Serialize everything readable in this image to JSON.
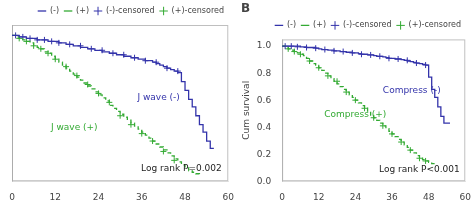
{
  "chart_data": [
    {
      "type": "line",
      "xlim": [
        0,
        60
      ],
      "ylim": [
        0,
        1.05
      ],
      "xticks": [
        0,
        12,
        24,
        36,
        48,
        60
      ],
      "tick_labels": "x",
      "grid": false,
      "legend": "upper right",
      "annotations": [
        {
          "text": "Log rank P=0.002"
        },
        {
          "text": "J wave (-)",
          "color": "#3333aa"
        },
        {
          "text": "J wave (+)",
          "color": "#33aa33"
        }
      ],
      "series": [
        {
          "name": "(-)",
          "type": "step",
          "line_style": "solid",
          "color": "#3333aa",
          "x": [
            0,
            1,
            2,
            3,
            4,
            5,
            6,
            7,
            8,
            9,
            10,
            11,
            12,
            13,
            14,
            15,
            16,
            17,
            18,
            19,
            20,
            21,
            22,
            23,
            24,
            25,
            26,
            27,
            28,
            29,
            30,
            31,
            32,
            33,
            34,
            35,
            36,
            37,
            38,
            39,
            40,
            41,
            42,
            43,
            44,
            45,
            46,
            47,
            48,
            49,
            50,
            51,
            52,
            53,
            54,
            55,
            56
          ],
          "values": [
            0.98,
            0.98,
            0.97,
            0.97,
            0.96,
            0.96,
            0.96,
            0.95,
            0.95,
            0.95,
            0.94,
            0.94,
            0.94,
            0.93,
            0.93,
            0.92,
            0.92,
            0.91,
            0.91,
            0.9,
            0.9,
            0.89,
            0.89,
            0.88,
            0.88,
            0.87,
            0.87,
            0.86,
            0.86,
            0.85,
            0.85,
            0.84,
            0.84,
            0.83,
            0.83,
            0.82,
            0.82,
            0.81,
            0.81,
            0.8,
            0.79,
            0.78,
            0.77,
            0.76,
            0.75,
            0.74,
            0.73,
            0.67,
            0.61,
            0.55,
            0.5,
            0.44,
            0.38,
            0.33,
            0.27,
            0.22,
            0.22
          ]
        },
        {
          "name": "(+)",
          "type": "step",
          "line_style": "dashed",
          "color": "#33aa33",
          "x": [
            0,
            1,
            2,
            3,
            4,
            5,
            6,
            7,
            8,
            9,
            10,
            11,
            12,
            13,
            14,
            15,
            16,
            17,
            18,
            19,
            20,
            21,
            22,
            23,
            24,
            25,
            26,
            27,
            28,
            29,
            30,
            31,
            32,
            33,
            34,
            35,
            36,
            37,
            38,
            39,
            40,
            41,
            42,
            43,
            44,
            45,
            46,
            47,
            48,
            49,
            50,
            51,
            52
          ],
          "values": [
            0.98,
            0.97,
            0.96,
            0.95,
            0.94,
            0.93,
            0.91,
            0.9,
            0.89,
            0.87,
            0.86,
            0.84,
            0.82,
            0.8,
            0.78,
            0.76,
            0.74,
            0.72,
            0.7,
            0.68,
            0.66,
            0.64,
            0.62,
            0.6,
            0.58,
            0.56,
            0.54,
            0.51,
            0.49,
            0.47,
            0.45,
            0.43,
            0.41,
            0.39,
            0.37,
            0.35,
            0.33,
            0.31,
            0.29,
            0.27,
            0.25,
            0.23,
            0.21,
            0.19,
            0.17,
            0.15,
            0.13,
            0.11,
            0.09,
            0.07,
            0.06,
            0.05,
            0.04
          ]
        },
        {
          "name": "(-)-censored",
          "type": "scatter",
          "marker": "+",
          "color": "#3333aa",
          "x": [
            1,
            3,
            5,
            7,
            9,
            11,
            13,
            16,
            19,
            22,
            25,
            28,
            31,
            34,
            37,
            40,
            43,
            46
          ],
          "values": [
            0.98,
            0.97,
            0.96,
            0.95,
            0.95,
            0.94,
            0.93,
            0.92,
            0.91,
            0.89,
            0.88,
            0.86,
            0.85,
            0.83,
            0.81,
            0.8,
            0.76,
            0.74
          ]
        },
        {
          "name": "(+)-censored",
          "type": "scatter",
          "marker": "+",
          "color": "#33aa33",
          "x": [
            2,
            4,
            6,
            8,
            10,
            12,
            15,
            18,
            21,
            24,
            27,
            30,
            33,
            36,
            39,
            42,
            45
          ],
          "values": [
            0.96,
            0.94,
            0.91,
            0.89,
            0.86,
            0.82,
            0.77,
            0.71,
            0.65,
            0.59,
            0.53,
            0.44,
            0.38,
            0.32,
            0.27,
            0.2,
            0.14
          ]
        }
      ]
    },
    {
      "type": "line",
      "title": "B",
      "xlim": [
        0,
        60
      ],
      "ylim": [
        0.0,
        1.05
      ],
      "xticks": [
        0,
        12,
        24,
        36,
        48,
        60
      ],
      "yticks": [
        {
          "value": 0.0,
          "label": "0.0"
        },
        0.2,
        0.4,
        0.6,
        0.8,
        {
          "value": 1.0,
          "label": "1.0"
        }
      ],
      "ylabel": "Cum survival",
      "grid": false,
      "legend": "upper right",
      "annotations": [
        {
          "text": "Log rank P<0.001"
        },
        {
          "text": "Compress (-)",
          "color": "#3333aa"
        },
        {
          "text": "Compress (+)",
          "color": "#33aa33"
        }
      ],
      "series": [
        {
          "name": "(-)",
          "type": "step",
          "line_style": "solid",
          "color": "#3333aa",
          "x": [
            0,
            1,
            2,
            3,
            4,
            5,
            6,
            7,
            8,
            9,
            10,
            11,
            12,
            13,
            14,
            15,
            16,
            17,
            18,
            19,
            20,
            21,
            22,
            23,
            24,
            25,
            26,
            27,
            28,
            29,
            30,
            31,
            32,
            33,
            34,
            35,
            36,
            37,
            38,
            39,
            40,
            41,
            42,
            43,
            44,
            45,
            46,
            47,
            48,
            49,
            50,
            51,
            52,
            53,
            54,
            55
          ],
          "values": [
            1.0,
            1.0,
            1.0,
            1.0,
            1.0,
            1.0,
            0.995,
            0.995,
            0.99,
            0.99,
            0.99,
            0.985,
            0.98,
            0.975,
            0.975,
            0.97,
            0.97,
            0.965,
            0.965,
            0.96,
            0.96,
            0.955,
            0.955,
            0.95,
            0.95,
            0.945,
            0.94,
            0.94,
            0.935,
            0.935,
            0.93,
            0.925,
            0.925,
            0.92,
            0.915,
            0.91,
            0.91,
            0.905,
            0.905,
            0.9,
            0.895,
            0.89,
            0.885,
            0.88,
            0.875,
            0.87,
            0.865,
            0.86,
            0.77,
            0.68,
            0.62,
            0.55,
            0.48,
            0.43,
            0.43,
            0.43
          ]
        },
        {
          "name": "(+)",
          "type": "step",
          "line_style": "dashed",
          "color": "#33aa33",
          "x": [
            0,
            1,
            2,
            3,
            4,
            5,
            6,
            7,
            8,
            9,
            10,
            11,
            12,
            13,
            14,
            15,
            16,
            17,
            18,
            19,
            20,
            21,
            22,
            23,
            24,
            25,
            26,
            27,
            28,
            29,
            30,
            31,
            32,
            33,
            34,
            35,
            36,
            37,
            38,
            39,
            40,
            41,
            42,
            43,
            44,
            45,
            46,
            47,
            48,
            49,
            50
          ],
          "values": [
            1.0,
            1.0,
            0.98,
            0.97,
            0.96,
            0.95,
            0.94,
            0.93,
            0.91,
            0.89,
            0.87,
            0.86,
            0.84,
            0.82,
            0.8,
            0.78,
            0.76,
            0.74,
            0.72,
            0.7,
            0.68,
            0.66,
            0.64,
            0.62,
            0.6,
            0.58,
            0.56,
            0.54,
            0.51,
            0.49,
            0.47,
            0.45,
            0.43,
            0.41,
            0.39,
            0.37,
            0.35,
            0.33,
            0.31,
            0.29,
            0.27,
            0.25,
            0.23,
            0.21,
            0.19,
            0.17,
            0.16,
            0.15,
            0.14,
            0.13,
            0.12
          ]
        },
        {
          "name": "(-)-censored",
          "type": "scatter",
          "marker": "+",
          "color": "#3333aa",
          "x": [
            1,
            3,
            5,
            8,
            11,
            14,
            17,
            20,
            23,
            26,
            29,
            32,
            35,
            38,
            41,
            44,
            47
          ],
          "values": [
            1.0,
            1.0,
            0.995,
            0.99,
            0.985,
            0.975,
            0.965,
            0.96,
            0.95,
            0.94,
            0.935,
            0.925,
            0.91,
            0.905,
            0.895,
            0.875,
            0.86
          ]
        },
        {
          "name": "(+)-censored",
          "type": "scatter",
          "marker": "+",
          "color": "#33aa33",
          "x": [
            2,
            4,
            6,
            9,
            12,
            15,
            18,
            21,
            24,
            27,
            30,
            33,
            36,
            39,
            42,
            45,
            47
          ],
          "values": [
            0.98,
            0.96,
            0.94,
            0.89,
            0.84,
            0.78,
            0.74,
            0.66,
            0.6,
            0.54,
            0.47,
            0.41,
            0.35,
            0.29,
            0.23,
            0.17,
            0.15
          ]
        }
      ]
    }
  ]
}
